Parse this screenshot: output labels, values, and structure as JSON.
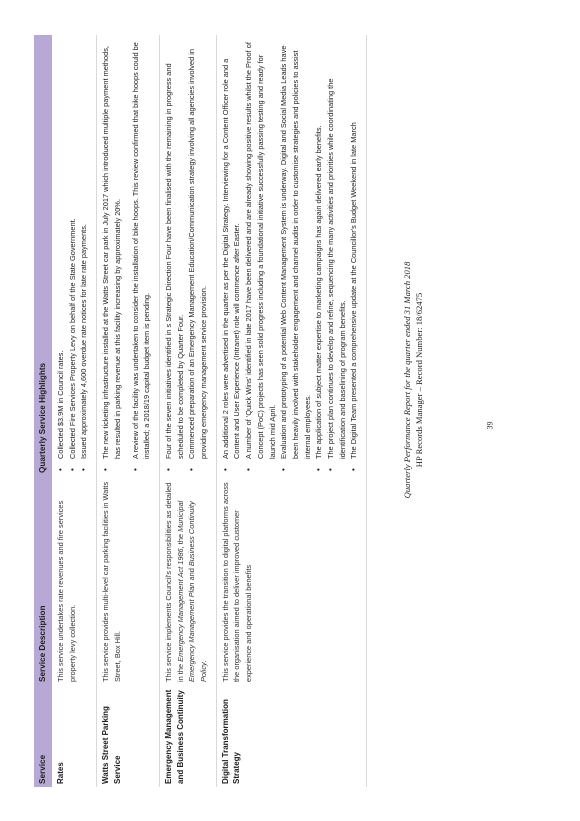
{
  "table": {
    "headers": [
      "Service",
      "Service Description",
      "Quarterly Service Highlights"
    ],
    "rows": [
      {
        "service": "Rates",
        "description": "This service undertakes rate revenues and fire services property levy collection.",
        "highlights": [
          "Collected $3.9M in Council rates.",
          "Collected Fire Services Property Levy on behalf of the State Government.",
          "Issued approximately 4,600 overdue rate notices for late rate payments."
        ]
      },
      {
        "service": "Watts Street Parking Service",
        "description": "This service provides multi-level car parking facilities in Watts Street, Box Hill.",
        "highlights": [
          "The new ticketing infrastructure installed at the Watts Street car park in July 2017 which introduced multiple payment methods, has resulted in parking revenue at this facility increasing by approximately 20%.",
          "A review of the facility was undertaken to consider the installation of bike hoops. This review confirmed that bike hoops could be installed; a 2018/19 capital budget item is pending."
        ]
      },
      {
        "service": "Emergency Management and Business Continuity",
        "description_parts": [
          "This service implements Council's responsibilities as detailed in the ",
          "Emergency Management Act 1986",
          ", the ",
          "Municipal Emergency Management Plan",
          " and ",
          "Business Continuity Policy",
          "."
        ],
        "highlights": [
          "Four of the seven initiatives identified in s Strategic Direction Four have been finalised with the remaining in progress and scheduled to be completed by Quarter Four.",
          "Commenced preparation of an Emergency Management Education/Communication strategy involving all agencies involved in providing emergency management service provision."
        ]
      },
      {
        "service": "Digital Transformation Strategy",
        "description": "This service provides the transition to digital platforms across the organisation aimed to deliver improved customer experience and operational benefits",
        "highlights": [
          "An additional 2 roles were advertised in the quarter as per the Digital Strategy. Interviewing for a Content Officer role and a Content and User Experience (Intranet) role will commence after Easter.",
          "A number of 'Quick Wins' identified in late 2017 have been delivered and are already showing positive results whilst the Proof of Concept (PoC) projects has seen solid progress including a foundational initiative successfully passing testing and ready for launch mid April.",
          "Evaluation and prototyping of a potential Web Content Management System is underway. Digital and Social Media Leads have been heavily involved with stakeholder engagement and channel audits in order to customise strategies and policies to assist internal employees.",
          "The application of subject matter expertise to marketing campaigns has again delivered early benefits.",
          "The project plan continues to develop and refine, sequencing the many activities and priorities while coordinating the identification and baselining of program benefits.",
          "The Digital Team presented a comprehensive update at the Councillor's Budget Weekend in late March"
        ]
      }
    ]
  },
  "page_number": "39",
  "footer": {
    "line1": "Quarterly Performance Report for the quarter ended 31 March 2018",
    "line2": "HP Records Manager – Record Number: 18/62475"
  }
}
